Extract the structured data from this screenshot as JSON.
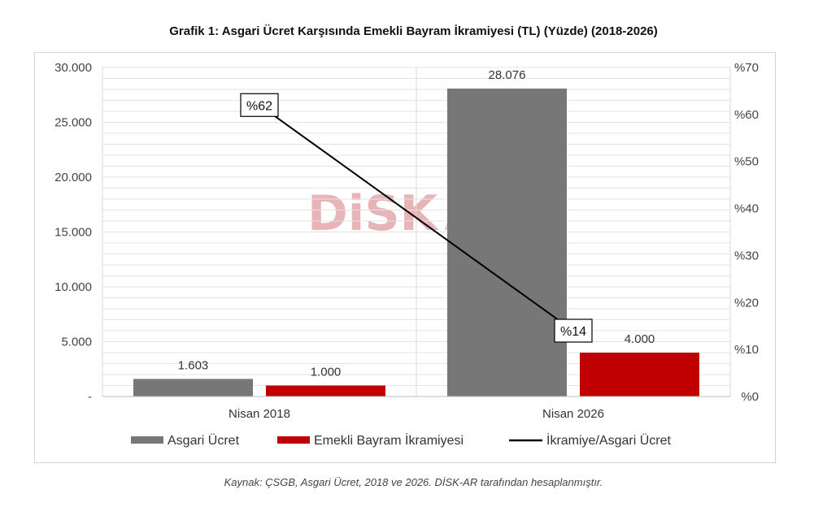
{
  "title": "Grafik 1: Asgari Ücret Karşısında Emekli Bayram İkramiyesi (TL) (Yüzde) (2018-2026)",
  "source": "Kaynak: ÇSGB, Asgari Ücret, 2018 ve 2026. DİSK-AR tarafından hesaplanmıştır.",
  "watermark": {
    "left": "DiSK",
    "right": "AR"
  },
  "colors": {
    "asgari": "#777777",
    "ikramiye": "#c00000",
    "line": "#000000",
    "watermark": "#e8b4b8"
  },
  "chart_data": {
    "type": "bar",
    "categories": [
      "Nisan 2018",
      "Nisan 2026"
    ],
    "series": [
      {
        "name": "Asgari Ücret",
        "values": [
          1603,
          28076
        ],
        "labels": [
          "1.603",
          "28.076"
        ],
        "axis": "left"
      },
      {
        "name": "Emekli Bayram İkramiyesi",
        "values": [
          1000,
          4000
        ],
        "labels": [
          "1.000",
          "4.000"
        ],
        "axis": "left"
      }
    ],
    "line_series": {
      "name": "İkramiye/Asgari Ücret",
      "values": [
        62,
        14
      ],
      "labels": [
        "%62",
        "%14"
      ],
      "axis": "right"
    },
    "ylim": [
      0,
      30000
    ],
    "y_ticks": [
      "-",
      "5.000",
      "10.000",
      "15.000",
      "20.000",
      "25.000",
      "30.000"
    ],
    "y2lim": [
      0,
      70
    ],
    "y2_ticks": [
      "%0",
      "%10",
      "%20",
      "%30",
      "%40",
      "%50",
      "%60",
      "%70"
    ],
    "grid": true,
    "legend": "bottom"
  }
}
